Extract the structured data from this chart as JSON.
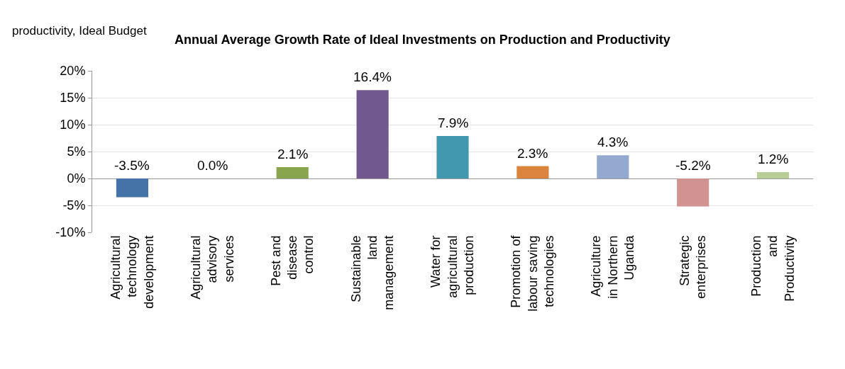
{
  "chart_data": {
    "type": "bar",
    "title": "Annual Average Growth Rate of Ideal Investments on Production and Productivity",
    "annotations": [
      "productivity, Ideal Budget"
    ],
    "categories": [
      "Agricultural technology development",
      "Agricultural advisory services",
      "Pest and disease control",
      "Sustainable land management",
      "Water for agricultural production",
      "Promotion of labour saving technologies",
      "Agriculture in Northern Uganda",
      "Strategic enterprises",
      "Production and Productivity"
    ],
    "values": [
      -3.5,
      0.0,
      2.1,
      16.4,
      7.9,
      2.3,
      4.3,
      -5.2,
      1.2
    ],
    "value_labels": [
      "-3.5%",
      "0.0%",
      "2.1%",
      "16.4%",
      "7.9%",
      "2.3%",
      "4.3%",
      "-5.2%",
      "1.2%"
    ],
    "colors": [
      "#4572a7",
      "#aa4643",
      "#89a54e",
      "#71588f",
      "#4198af",
      "#db843d",
      "#93a9cf",
      "#d19392",
      "#b9cd96"
    ],
    "ylim": [
      -10,
      20
    ],
    "yticks": [
      {
        "value": -10,
        "label": "-10%"
      },
      {
        "value": -5,
        "label": "-5%"
      },
      {
        "value": 0,
        "label": "0%"
      },
      {
        "value": 5,
        "label": "5%"
      },
      {
        "value": 10,
        "label": "10%"
      },
      {
        "value": 15,
        "label": "15%"
      },
      {
        "value": 20,
        "label": "20%"
      }
    ],
    "grid": "y"
  }
}
